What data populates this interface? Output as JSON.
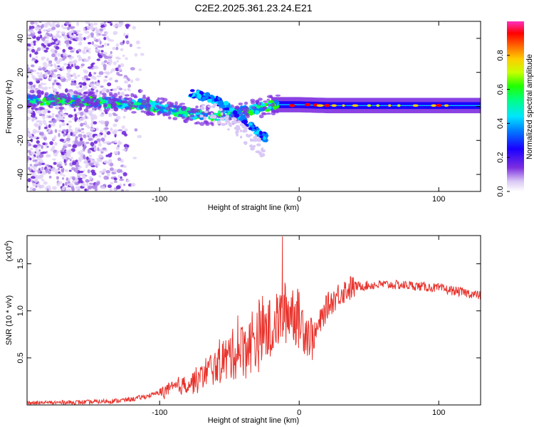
{
  "chart_data": [
    {
      "type": "heatmap",
      "title": "C2E2.2025.361.23.24.E21",
      "xlabel": "Height of straight line (km)",
      "ylabel": "Frequency (Hz)",
      "xlim": [
        -195,
        130
      ],
      "ylim": [
        -50,
        50
      ],
      "x_ticks": [
        -100,
        0,
        100
      ],
      "x_tick_labels": [
        "-100",
        "0",
        "100"
      ],
      "y_ticks": [
        -40,
        -20,
        0,
        20,
        40
      ],
      "y_tick_labels": [
        "-40",
        "-20",
        "0",
        "20",
        "40"
      ],
      "colorbar": {
        "label": "Normalized spectral amplitude",
        "range": [
          0.0,
          1.0
        ],
        "ticks": [
          0.0,
          0.2,
          0.4,
          0.6,
          0.8
        ],
        "tick_labels": [
          "0.0",
          "0.2",
          "0.4",
          "0.6",
          "0.8"
        ]
      },
      "features": {
        "noise_region_x": [
          -195,
          -110
        ],
        "main_trace": [
          [
            -195,
            4
          ],
          [
            -150,
            3
          ],
          [
            -110,
            1
          ],
          [
            -80,
            -4
          ],
          [
            -60,
            -6
          ],
          [
            -40,
            -3
          ],
          [
            -20,
            1
          ],
          [
            0,
            1
          ],
          [
            20,
            0.5
          ],
          [
            60,
            0.5
          ],
          [
            100,
            0.5
          ],
          [
            130,
            0.5
          ]
        ],
        "secondary_trace": [
          [
            -78,
            8
          ],
          [
            -60,
            4
          ],
          [
            -45,
            -4
          ],
          [
            -35,
            -12
          ],
          [
            -25,
            -18
          ]
        ],
        "peak_points": [
          [
            -5,
            0.5
          ],
          [
            6,
            1
          ],
          [
            12,
            0.8
          ],
          [
            20,
            0.6
          ],
          [
            100,
            0.6
          ]
        ]
      }
    },
    {
      "type": "line",
      "xlabel": "Height of straight line (km)",
      "ylabel": "SNR (10 * v/v)",
      "multiplier_label": "(x10",
      "multiplier_exp": "4",
      "xlim": [
        -195,
        130
      ],
      "ylim": [
        0,
        18000
      ],
      "x_ticks": [
        -100,
        0,
        100
      ],
      "x_tick_labels": [
        "-100",
        "0",
        "100"
      ],
      "y_ticks": [
        5000,
        10000,
        15000
      ],
      "y_tick_labels": [
        "0.5",
        "1.0",
        "1.5"
      ],
      "color": "#e8312a",
      "series": [
        {
          "name": "SNR",
          "x": [
            -195,
            -170,
            -150,
            -130,
            -120,
            -110,
            -100,
            -90,
            -80,
            -70,
            -60,
            -50,
            -40,
            -30,
            -20,
            -15,
            -10,
            -5,
            0,
            10,
            20,
            30,
            40,
            60,
            80,
            100,
            120,
            130
          ],
          "values": [
            200,
            250,
            300,
            450,
            600,
            900,
            1300,
            1800,
            2200,
            3000,
            4200,
            5200,
            6200,
            7200,
            8200,
            9000,
            9800,
            10200,
            9000,
            7000,
            10500,
            12000,
            12600,
            12800,
            12700,
            12400,
            11900,
            11600
          ]
        }
      ],
      "spikes": [
        [
          -12,
          17900
        ],
        [
          -8,
          8000
        ],
        [
          -24,
          8600
        ],
        [
          -44,
          9500
        ],
        [
          -55,
          6500
        ],
        [
          -80,
          1900
        ],
        [
          -86,
          1400
        ]
      ]
    }
  ]
}
